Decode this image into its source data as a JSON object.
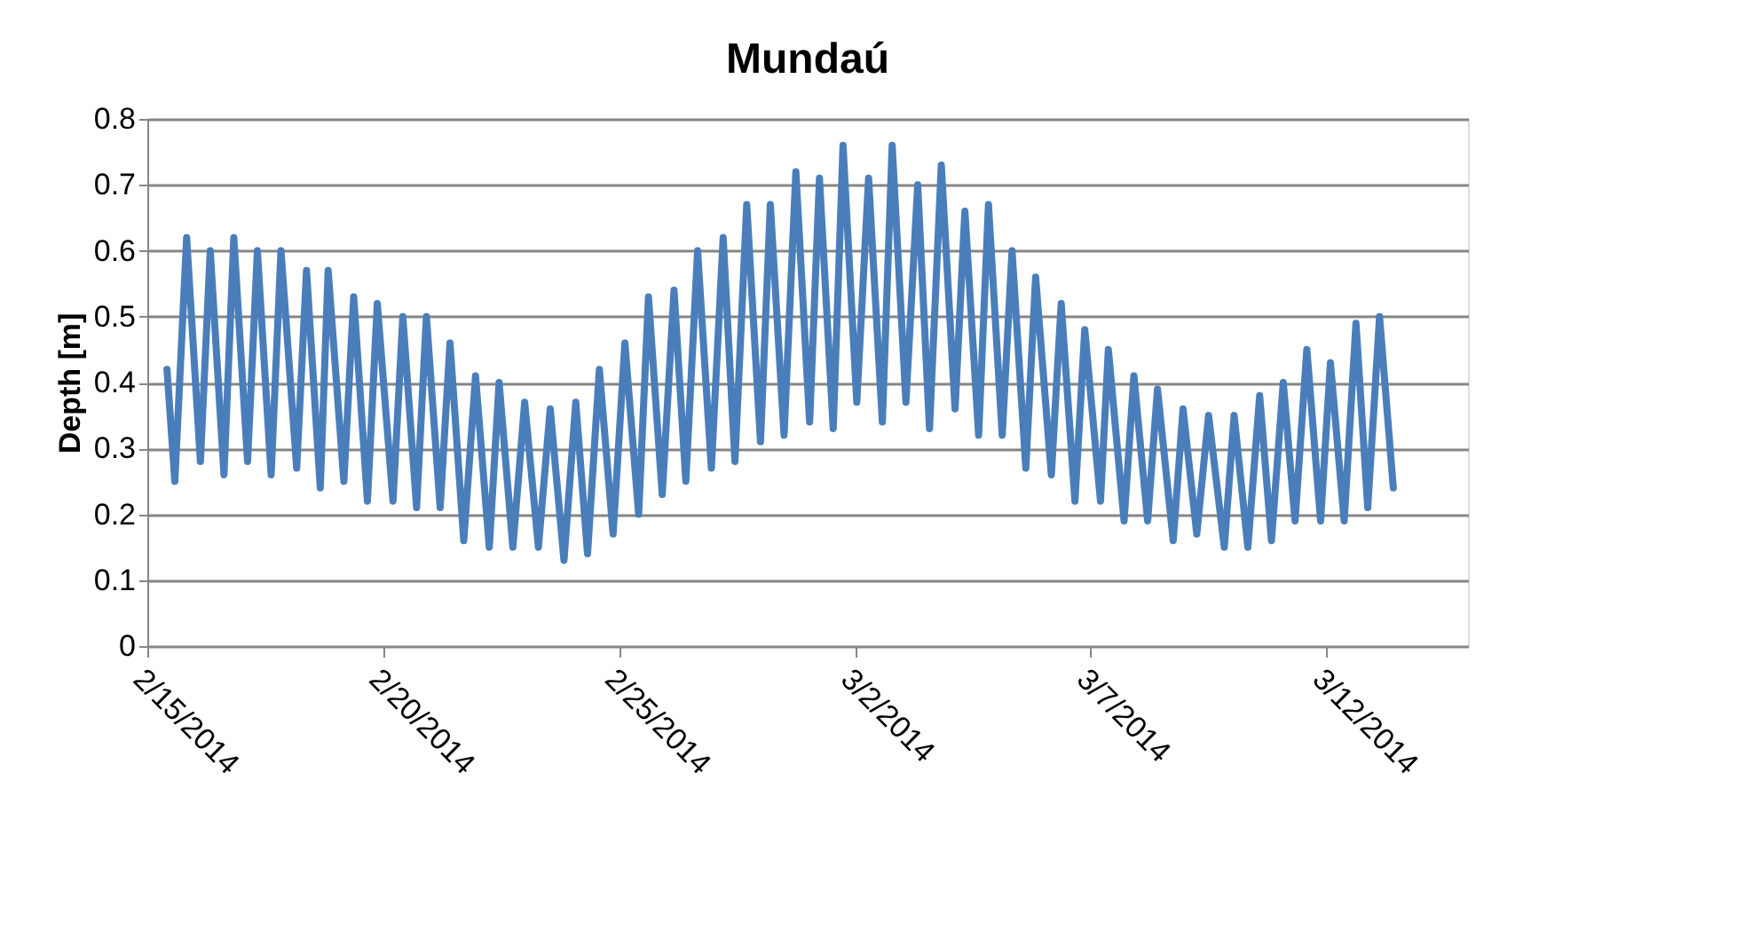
{
  "chart_data": {
    "type": "line",
    "title": "Mundaú",
    "ylabel": "Depth [m]",
    "xlim": [
      "2014-02-15",
      "2014-03-15"
    ],
    "xticks": [
      {
        "value": "2014-02-15",
        "label": "2/15/2014"
      },
      {
        "value": "2014-02-20",
        "label": "2/20/2014"
      },
      {
        "value": "2014-02-25",
        "label": "2/25/2014"
      },
      {
        "value": "2014-03-02",
        "label": "3/2/2014"
      },
      {
        "value": "2014-03-07",
        "label": "3/7/2014"
      },
      {
        "value": "2014-03-12",
        "label": "3/12/2014"
      }
    ],
    "ylim": [
      0,
      0.8
    ],
    "yticks": [
      0,
      0.1,
      0.2,
      0.3,
      0.4,
      0.5,
      0.6,
      0.7,
      0.8
    ],
    "grid": "y",
    "marker": "none",
    "line_style": "solid",
    "x": [
      "2014-02-15T10:00",
      "2014-02-15T14:00",
      "2014-02-15T20:00",
      "2014-02-16T03:00",
      "2014-02-16T08:00",
      "2014-02-16T15:00",
      "2014-02-16T20:00",
      "2014-02-17T03:00",
      "2014-02-17T08:00",
      "2014-02-17T15:00",
      "2014-02-17T20:00",
      "2014-02-18T04:00",
      "2014-02-18T09:00",
      "2014-02-18T16:00",
      "2014-02-18T20:00",
      "2014-02-19T04:00",
      "2014-02-19T09:00",
      "2014-02-19T16:00",
      "2014-02-19T21:00",
      "2014-02-20T05:00",
      "2014-02-20T10:00",
      "2014-02-20T17:00",
      "2014-02-20T22:00",
      "2014-02-21T05:00",
      "2014-02-21T10:00",
      "2014-02-21T17:00",
      "2014-02-21T23:00",
      "2014-02-22T06:00",
      "2014-02-22T11:00",
      "2014-02-22T18:00",
      "2014-02-23T00:00",
      "2014-02-23T07:00",
      "2014-02-23T13:00",
      "2014-02-23T20:00",
      "2014-02-24T02:00",
      "2014-02-24T08:00",
      "2014-02-24T14:00",
      "2014-02-24T21:00",
      "2014-02-25T03:00",
      "2014-02-25T10:00",
      "2014-02-25T15:00",
      "2014-02-25T22:00",
      "2014-02-26T04:00",
      "2014-02-26T10:00",
      "2014-02-26T16:00",
      "2014-02-26T23:00",
      "2014-02-27T05:00",
      "2014-02-27T11:00",
      "2014-02-27T17:00",
      "2014-02-28T00:00",
      "2014-02-28T05:00",
      "2014-02-28T12:00",
      "2014-02-28T18:00",
      "2014-03-01T01:00",
      "2014-03-01T06:00",
      "2014-03-01T13:00",
      "2014-03-01T18:00",
      "2014-03-02T01:00",
      "2014-03-02T07:00",
      "2014-03-02T14:00",
      "2014-03-02T19:00",
      "2014-03-03T02:00",
      "2014-03-03T08:00",
      "2014-03-03T14:00",
      "2014-03-03T20:00",
      "2014-03-04T03:00",
      "2014-03-04T08:00",
      "2014-03-04T15:00",
      "2014-03-04T20:00",
      "2014-03-05T03:00",
      "2014-03-05T08:00",
      "2014-03-05T15:00",
      "2014-03-05T20:00",
      "2014-03-06T04:00",
      "2014-03-06T09:00",
      "2014-03-06T16:00",
      "2014-03-06T21:00",
      "2014-03-07T05:00",
      "2014-03-07T09:00",
      "2014-03-07T17:00",
      "2014-03-07T22:00",
      "2014-03-08T05:00",
      "2014-03-08T10:00",
      "2014-03-08T18:00",
      "2014-03-08T23:00",
      "2014-03-09T06:00",
      "2014-03-09T12:00",
      "2014-03-09T20:00",
      "2014-03-10T01:00",
      "2014-03-10T08:00",
      "2014-03-10T14:00",
      "2014-03-10T20:00",
      "2014-03-11T02:00",
      "2014-03-11T08:00",
      "2014-03-11T14:00",
      "2014-03-11T21:00",
      "2014-03-12T02:00",
      "2014-03-12T09:00",
      "2014-03-12T15:00",
      "2014-03-12T21:00",
      "2014-03-13T03:00",
      "2014-03-13T10:00"
    ],
    "series": [
      {
        "color": "#4a7ebb",
        "values": [
          0.42,
          0.25,
          0.62,
          0.28,
          0.6,
          0.26,
          0.62,
          0.28,
          0.6,
          0.26,
          0.6,
          0.27,
          0.57,
          0.24,
          0.57,
          0.25,
          0.53,
          0.22,
          0.52,
          0.22,
          0.5,
          0.21,
          0.5,
          0.21,
          0.46,
          0.16,
          0.41,
          0.15,
          0.4,
          0.15,
          0.37,
          0.15,
          0.36,
          0.13,
          0.37,
          0.14,
          0.42,
          0.17,
          0.46,
          0.2,
          0.53,
          0.23,
          0.54,
          0.25,
          0.6,
          0.27,
          0.62,
          0.28,
          0.67,
          0.31,
          0.67,
          0.32,
          0.72,
          0.34,
          0.71,
          0.33,
          0.76,
          0.37,
          0.71,
          0.34,
          0.76,
          0.37,
          0.7,
          0.33,
          0.73,
          0.36,
          0.66,
          0.32,
          0.67,
          0.32,
          0.6,
          0.27,
          0.56,
          0.26,
          0.52,
          0.22,
          0.48,
          0.22,
          0.45,
          0.19,
          0.41,
          0.19,
          0.39,
          0.16,
          0.36,
          0.17,
          0.35,
          0.15,
          0.35,
          0.15,
          0.38,
          0.16,
          0.4,
          0.19,
          0.45,
          0.19,
          0.43,
          0.19,
          0.49,
          0.21,
          0.5,
          0.24
        ]
      }
    ]
  }
}
